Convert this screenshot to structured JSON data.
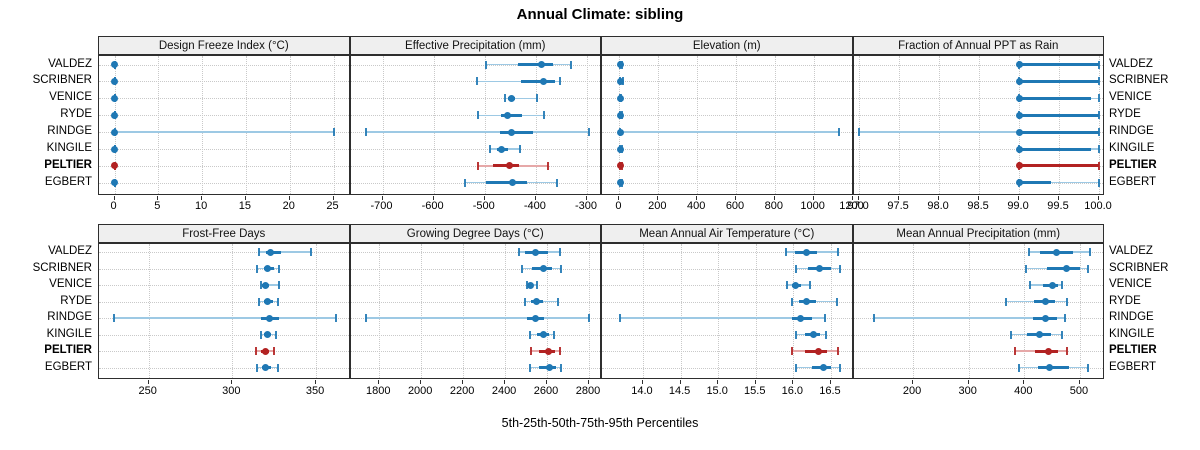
{
  "title": "Annual Climate: sibling",
  "xlabel": "5th-25th-50th-75th-95th Percentiles",
  "sites": [
    "VALDEZ",
    "SCRIBNER",
    "VENICE",
    "RYDE",
    "RINDGE",
    "KINGILE",
    "PELTIER",
    "EGBERT"
  ],
  "highlight_site": "PELTIER",
  "colors": {
    "series_blue": "#1f78b4",
    "series_blue_light": "#9dc9e4",
    "series_red": "#b22222",
    "series_red_light": "#e6a8a8",
    "strip_bg": "#efefef",
    "panel_border": "#2e2e2e",
    "grid": "#c9c9c9",
    "text": "#000000"
  },
  "chart_data": [
    {
      "type": "dotplot-percentile",
      "row": 0,
      "col": 0,
      "title": "Design Freeze Index (°C)",
      "xlim": [
        -1.77,
        26.94
      ],
      "ticks": [
        0,
        5,
        10,
        15,
        20,
        25
      ],
      "tick_labels": [
        "0",
        "5",
        "10",
        "15",
        "20",
        "25"
      ],
      "percentiles": [
        5,
        25,
        50,
        75,
        95
      ],
      "series": [
        {
          "site": "VALDEZ",
          "values": [
            0,
            0,
            0,
            0,
            0
          ]
        },
        {
          "site": "SCRIBNER",
          "values": [
            0,
            0,
            0,
            0,
            0
          ]
        },
        {
          "site": "VENICE",
          "values": [
            0,
            0,
            0,
            0,
            0
          ]
        },
        {
          "site": "RYDE",
          "values": [
            0,
            0,
            0,
            0,
            0
          ]
        },
        {
          "site": "RINDGE",
          "values": [
            0,
            0,
            0,
            0,
            25.1
          ]
        },
        {
          "site": "KINGILE",
          "values": [
            0,
            0,
            0,
            0,
            0
          ]
        },
        {
          "site": "PELTIER",
          "values": [
            0,
            0,
            0,
            0,
            0
          ]
        },
        {
          "site": "EGBERT",
          "values": [
            0,
            0,
            0,
            0,
            0
          ]
        }
      ]
    },
    {
      "type": "dotplot-percentile",
      "row": 0,
      "col": 1,
      "title": "Effective Precipitation (mm)",
      "xlim": [
        -762.7,
        -270.6
      ],
      "ticks": [
        -700,
        -600,
        -500,
        -400,
        -300
      ],
      "tick_labels": [
        "-700",
        "-600",
        "-500",
        "-400",
        "-300"
      ],
      "percentiles": [
        5,
        25,
        50,
        75,
        95
      ],
      "series": [
        {
          "site": "VALDEZ",
          "values": [
            -498,
            -434,
            -389,
            -366,
            -331
          ]
        },
        {
          "site": "SCRIBNER",
          "values": [
            -515,
            -430,
            -385,
            -362,
            -353
          ]
        },
        {
          "site": "VENICE",
          "values": [
            -460,
            -455,
            -447,
            -440,
            -398
          ]
        },
        {
          "site": "RYDE",
          "values": [
            -514,
            -468,
            -455,
            -428,
            -385
          ]
        },
        {
          "site": "RINDGE",
          "values": [
            -732,
            -470,
            -447,
            -405,
            -296
          ]
        },
        {
          "site": "KINGILE",
          "values": [
            -489,
            -477,
            -467,
            -455,
            -431
          ]
        },
        {
          "site": "PELTIER",
          "values": [
            -514,
            -484,
            -452,
            -432,
            -376
          ]
        },
        {
          "site": "EGBERT",
          "values": [
            -539,
            -498,
            -446,
            -418,
            -358
          ]
        }
      ]
    },
    {
      "type": "dotplot-percentile",
      "row": 0,
      "col": 2,
      "title": "Elevation (m)",
      "xlim": [
        -90,
        1205
      ],
      "ticks": [
        0,
        200,
        400,
        600,
        800,
        1000,
        1200
      ],
      "tick_labels": [
        "0",
        "200",
        "400",
        "600",
        "800",
        "1000",
        "1200"
      ],
      "percentiles": [
        5,
        25,
        50,
        75,
        95
      ],
      "series": [
        {
          "site": "VALDEZ",
          "values": [
            2,
            4,
            5,
            7,
            14
          ]
        },
        {
          "site": "SCRIBNER",
          "values": [
            2,
            4,
            6,
            8,
            20
          ]
        },
        {
          "site": "VENICE",
          "values": [
            2,
            4,
            5,
            7,
            10
          ]
        },
        {
          "site": "RYDE",
          "values": [
            3,
            5,
            6,
            8,
            12
          ]
        },
        {
          "site": "RINDGE",
          "values": [
            2,
            4,
            6,
            9,
            1130
          ]
        },
        {
          "site": "KINGILE",
          "values": [
            2,
            4,
            6,
            8,
            12
          ]
        },
        {
          "site": "PELTIER",
          "values": [
            3,
            5,
            6,
            8,
            11
          ]
        },
        {
          "site": "EGBERT",
          "values": [
            2,
            5,
            7,
            9,
            15
          ]
        }
      ]
    },
    {
      "type": "dotplot-percentile",
      "row": 0,
      "col": 3,
      "title": "Fraction of Annual PPT as Rain",
      "xlim": [
        96.93,
        100.075
      ],
      "ticks": [
        97.0,
        97.5,
        98.0,
        98.5,
        99.0,
        99.5,
        100.0
      ],
      "tick_labels": [
        "97.0",
        "97.5",
        "98.0",
        "98.5",
        "99.0",
        "99.5",
        "100.0"
      ],
      "percentiles": [
        5,
        25,
        50,
        75,
        95
      ],
      "series": [
        {
          "site": "VALDEZ",
          "values": [
            99.0,
            99.0,
            99.0,
            100.0,
            100.0
          ]
        },
        {
          "site": "SCRIBNER",
          "values": [
            99.0,
            99.0,
            99.0,
            100.0,
            100.0
          ]
        },
        {
          "site": "VENICE",
          "values": [
            99.0,
            99.0,
            99.0,
            99.9,
            100.0
          ]
        },
        {
          "site": "RYDE",
          "values": [
            99.0,
            99.0,
            99.0,
            100.0,
            100.0
          ]
        },
        {
          "site": "RINDGE",
          "values": [
            97.0,
            99.0,
            99.0,
            100.0,
            100.0
          ]
        },
        {
          "site": "KINGILE",
          "values": [
            99.0,
            99.0,
            99.0,
            99.9,
            100.0
          ]
        },
        {
          "site": "PELTIER",
          "values": [
            99.0,
            99.0,
            99.0,
            100.0,
            100.0
          ]
        },
        {
          "site": "EGBERT",
          "values": [
            99.0,
            99.0,
            99.0,
            99.4,
            100.0
          ]
        }
      ]
    },
    {
      "type": "dotplot-percentile",
      "row": 1,
      "col": 0,
      "title": "Frost-Free Days",
      "xlim": [
        220.3,
        370.6
      ],
      "ticks": [
        250,
        300,
        350
      ],
      "tick_labels": [
        "250",
        "300",
        "350"
      ],
      "percentiles": [
        5,
        25,
        50,
        75,
        95
      ],
      "series": [
        {
          "site": "VALDEZ",
          "values": [
            316,
            320,
            323,
            329,
            347
          ]
        },
        {
          "site": "SCRIBNER",
          "values": [
            315,
            319,
            321,
            325,
            328
          ]
        },
        {
          "site": "VENICE",
          "values": [
            317,
            318,
            320,
            322,
            328
          ]
        },
        {
          "site": "RYDE",
          "values": [
            316,
            319,
            321,
            324,
            327
          ]
        },
        {
          "site": "RINDGE",
          "values": [
            229,
            317,
            322,
            328,
            362
          ]
        },
        {
          "site": "KINGILE",
          "values": [
            317,
            319,
            321,
            323,
            326
          ]
        },
        {
          "site": "PELTIER",
          "values": [
            314,
            317,
            320,
            322,
            325
          ]
        },
        {
          "site": "EGBERT",
          "values": [
            315,
            318,
            320,
            323,
            327
          ]
        }
      ]
    },
    {
      "type": "dotplot-percentile",
      "row": 1,
      "col": 1,
      "title": "Growing Degree Days (°C)",
      "xlim": [
        1663,
        2862
      ],
      "ticks": [
        1800,
        2000,
        2200,
        2400,
        2600,
        2800
      ],
      "tick_labels": [
        "1800",
        "2000",
        "2200",
        "2400",
        "2600",
        "2800"
      ],
      "percentiles": [
        5,
        25,
        50,
        75,
        95
      ],
      "series": [
        {
          "site": "VALDEZ",
          "values": [
            2465,
            2495,
            2545,
            2605,
            2660
          ]
        },
        {
          "site": "SCRIBNER",
          "values": [
            2480,
            2530,
            2585,
            2625,
            2665
          ]
        },
        {
          "site": "VENICE",
          "values": [
            2504,
            2511,
            2519,
            2530,
            2551
          ]
        },
        {
          "site": "RYDE",
          "values": [
            2496,
            2525,
            2550,
            2580,
            2650
          ]
        },
        {
          "site": "RINDGE",
          "values": [
            1739,
            2505,
            2543,
            2585,
            2798
          ]
        },
        {
          "site": "KINGILE",
          "values": [
            2517,
            2550,
            2583,
            2607,
            2634
          ]
        },
        {
          "site": "PELTIER",
          "values": [
            2523,
            2562,
            2609,
            2636,
            2661
          ]
        },
        {
          "site": "EGBERT",
          "values": [
            2520,
            2560,
            2614,
            2641,
            2666
          ]
        }
      ]
    },
    {
      "type": "dotplot-percentile",
      "row": 1,
      "col": 2,
      "title": "Mean Annual Air Temperature (°C)",
      "xlim": [
        13.455,
        16.8
      ],
      "ticks": [
        14.0,
        14.5,
        15.0,
        15.5,
        16.0,
        16.5
      ],
      "tick_labels": [
        "14.0",
        "14.5",
        "15.0",
        "15.5",
        "16.0",
        "16.5"
      ],
      "percentiles": [
        5,
        25,
        50,
        75,
        95
      ],
      "series": [
        {
          "site": "VALDEZ",
          "values": [
            15.9,
            16.02,
            16.18,
            16.32,
            16.6
          ]
        },
        {
          "site": "SCRIBNER",
          "values": [
            16.03,
            16.2,
            16.35,
            16.5,
            16.62
          ]
        },
        {
          "site": "VENICE",
          "values": [
            15.92,
            15.98,
            16.03,
            16.1,
            16.22
          ]
        },
        {
          "site": "RYDE",
          "values": [
            15.98,
            16.08,
            16.17,
            16.3,
            16.58
          ]
        },
        {
          "site": "RINDGE",
          "values": [
            13.7,
            15.98,
            16.1,
            16.25,
            16.42
          ]
        },
        {
          "site": "KINGILE",
          "values": [
            16.03,
            16.15,
            16.27,
            16.36,
            16.44
          ]
        },
        {
          "site": "PELTIER",
          "values": [
            15.98,
            16.15,
            16.34,
            16.45,
            16.6
          ]
        },
        {
          "site": "EGBERT",
          "values": [
            16.03,
            16.25,
            16.4,
            16.5,
            16.62
          ]
        }
      ]
    },
    {
      "type": "dotplot-percentile",
      "row": 1,
      "col": 3,
      "title": "Mean Annual Precipitation (mm)",
      "xlim": [
        93,
        545
      ],
      "ticks": [
        200,
        300,
        400,
        500
      ],
      "tick_labels": [
        "200",
        "300",
        "400",
        "500"
      ],
      "percentiles": [
        5,
        25,
        50,
        75,
        95
      ],
      "series": [
        {
          "site": "VALDEZ",
          "values": [
            408,
            428,
            458,
            487,
            518
          ]
        },
        {
          "site": "SCRIBNER",
          "values": [
            403,
            440,
            476,
            500,
            515
          ]
        },
        {
          "site": "VENICE",
          "values": [
            411,
            433,
            450,
            460,
            467
          ]
        },
        {
          "site": "RYDE",
          "values": [
            367,
            418,
            438,
            455,
            477
          ]
        },
        {
          "site": "RINDGE",
          "values": [
            130,
            415,
            438,
            458,
            474
          ]
        },
        {
          "site": "KINGILE",
          "values": [
            376,
            405,
            428,
            448,
            467
          ]
        },
        {
          "site": "PELTIER",
          "values": [
            383,
            420,
            443,
            460,
            477
          ]
        },
        {
          "site": "EGBERT",
          "values": [
            390,
            425,
            445,
            480,
            515
          ]
        }
      ]
    }
  ]
}
